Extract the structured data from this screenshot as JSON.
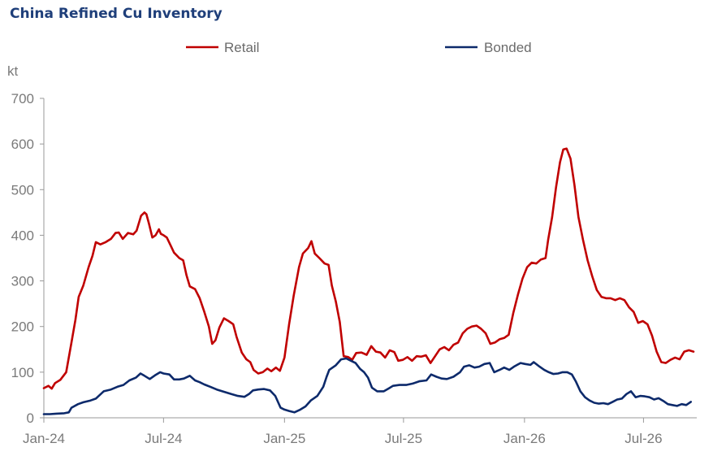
{
  "chart_data": {
    "type": "line",
    "title": "China Refined Cu Inventory",
    "ylabel": "kt",
    "xlabel": "",
    "ylim": [
      0,
      700
    ],
    "yticks": [
      0,
      100,
      200,
      300,
      400,
      500,
      600,
      700
    ],
    "xlim": [
      "2024-01-01",
      "2026-09-20"
    ],
    "xticks": [
      "2024-01-01",
      "2024-07-01",
      "2025-01-01",
      "2025-07-01",
      "2026-01-01",
      "2026-07-01"
    ],
    "xtick_labels": [
      "Jan-24",
      "Jul-24",
      "Jan-25",
      "Jul-25",
      "Jan-26",
      "Jul-26"
    ],
    "grid": false,
    "legend": "top-center",
    "series": [
      {
        "name": "Retail",
        "color": "#c00000",
        "points": [
          [
            "2024-01-01",
            65
          ],
          [
            "2024-01-08",
            70
          ],
          [
            "2024-01-13",
            64
          ],
          [
            "2024-01-18",
            76
          ],
          [
            "2024-01-26",
            83
          ],
          [
            "2024-02-04",
            100
          ],
          [
            "2024-02-12",
            165
          ],
          [
            "2024-02-18",
            215
          ],
          [
            "2024-02-23",
            265
          ],
          [
            "2024-03-01",
            290
          ],
          [
            "2024-03-09",
            330
          ],
          [
            "2024-03-15",
            355
          ],
          [
            "2024-03-20",
            385
          ],
          [
            "2024-03-27",
            380
          ],
          [
            "2024-04-04",
            385
          ],
          [
            "2024-04-12",
            392
          ],
          [
            "2024-04-19",
            405
          ],
          [
            "2024-04-24",
            406
          ],
          [
            "2024-04-30",
            392
          ],
          [
            "2024-05-08",
            405
          ],
          [
            "2024-05-16",
            402
          ],
          [
            "2024-05-21",
            410
          ],
          [
            "2024-05-28",
            443
          ],
          [
            "2024-06-02",
            450
          ],
          [
            "2024-06-05",
            446
          ],
          [
            "2024-06-09",
            425
          ],
          [
            "2024-06-14",
            395
          ],
          [
            "2024-06-19",
            400
          ],
          [
            "2024-06-24",
            413
          ],
          [
            "2024-06-27",
            403
          ],
          [
            "2024-07-01",
            400
          ],
          [
            "2024-07-06",
            395
          ],
          [
            "2024-07-11",
            380
          ],
          [
            "2024-07-17",
            362
          ],
          [
            "2024-07-25",
            350
          ],
          [
            "2024-07-31",
            345
          ],
          [
            "2024-08-05",
            312
          ],
          [
            "2024-08-10",
            288
          ],
          [
            "2024-08-18",
            282
          ],
          [
            "2024-08-25",
            262
          ],
          [
            "2024-09-01",
            232
          ],
          [
            "2024-09-08",
            200
          ],
          [
            "2024-09-13",
            162
          ],
          [
            "2024-09-18",
            170
          ],
          [
            "2024-09-24",
            198
          ],
          [
            "2024-10-01",
            218
          ],
          [
            "2024-10-08",
            212
          ],
          [
            "2024-10-15",
            205
          ],
          [
            "2024-10-20",
            178
          ],
          [
            "2024-10-28",
            143
          ],
          [
            "2024-11-04",
            128
          ],
          [
            "2024-11-10",
            122
          ],
          [
            "2024-11-15",
            105
          ],
          [
            "2024-11-22",
            97
          ],
          [
            "2024-11-29",
            100
          ],
          [
            "2024-12-06",
            108
          ],
          [
            "2024-12-12",
            102
          ],
          [
            "2024-12-19",
            110
          ],
          [
            "2024-12-25",
            103
          ],
          [
            "2025-01-01",
            132
          ],
          [
            "2025-01-08",
            205
          ],
          [
            "2025-01-15",
            268
          ],
          [
            "2025-01-23",
            330
          ],
          [
            "2025-01-29",
            360
          ],
          [
            "2025-02-06",
            372
          ],
          [
            "2025-02-11",
            387
          ],
          [
            "2025-02-16",
            360
          ],
          [
            "2025-02-23",
            350
          ],
          [
            "2025-03-03",
            338
          ],
          [
            "2025-03-09",
            335
          ],
          [
            "2025-03-14",
            290
          ],
          [
            "2025-03-20",
            255
          ],
          [
            "2025-03-26",
            210
          ],
          [
            "2025-04-01",
            135
          ],
          [
            "2025-04-08",
            133
          ],
          [
            "2025-04-14",
            127
          ],
          [
            "2025-04-20",
            142
          ],
          [
            "2025-04-28",
            143
          ],
          [
            "2025-05-06",
            138
          ],
          [
            "2025-05-13",
            157
          ],
          [
            "2025-05-20",
            145
          ],
          [
            "2025-05-27",
            143
          ],
          [
            "2025-06-03",
            132
          ],
          [
            "2025-06-10",
            148
          ],
          [
            "2025-06-17",
            144
          ],
          [
            "2025-06-23",
            125
          ],
          [
            "2025-06-30",
            127
          ],
          [
            "2025-07-07",
            133
          ],
          [
            "2025-07-14",
            125
          ],
          [
            "2025-07-21",
            135
          ],
          [
            "2025-07-28",
            134
          ],
          [
            "2025-08-04",
            137
          ],
          [
            "2025-08-11",
            120
          ],
          [
            "2025-08-18",
            135
          ],
          [
            "2025-08-25",
            150
          ],
          [
            "2025-09-01",
            155
          ],
          [
            "2025-09-08",
            148
          ],
          [
            "2025-09-15",
            160
          ],
          [
            "2025-09-22",
            165
          ],
          [
            "2025-09-29",
            185
          ],
          [
            "2025-10-06",
            195
          ],
          [
            "2025-10-13",
            200
          ],
          [
            "2025-10-20",
            202
          ],
          [
            "2025-10-27",
            195
          ],
          [
            "2025-11-03",
            185
          ],
          [
            "2025-11-10",
            162
          ],
          [
            "2025-11-17",
            165
          ],
          [
            "2025-11-24",
            172
          ],
          [
            "2025-12-01",
            175
          ],
          [
            "2025-12-08",
            182
          ],
          [
            "2025-12-15",
            230
          ],
          [
            "2025-12-22",
            270
          ],
          [
            "2025-12-29",
            305
          ],
          [
            "2026-01-05",
            330
          ],
          [
            "2026-01-12",
            340
          ],
          [
            "2026-01-19",
            338
          ],
          [
            "2026-01-26",
            347
          ],
          [
            "2026-02-02",
            350
          ],
          [
            "2026-02-06",
            390
          ],
          [
            "2026-02-12",
            440
          ],
          [
            "2026-02-18",
            505
          ],
          [
            "2026-02-24",
            560
          ],
          [
            "2026-03-01",
            588
          ],
          [
            "2026-03-06",
            590
          ],
          [
            "2026-03-12",
            568
          ],
          [
            "2026-03-18",
            510
          ],
          [
            "2026-03-24",
            440
          ],
          [
            "2026-03-31",
            390
          ],
          [
            "2026-04-07",
            345
          ],
          [
            "2026-04-14",
            310
          ],
          [
            "2026-04-21",
            280
          ],
          [
            "2026-04-28",
            265
          ],
          [
            "2026-05-05",
            262
          ],
          [
            "2026-05-12",
            262
          ],
          [
            "2026-05-19",
            258
          ],
          [
            "2026-05-26",
            262
          ],
          [
            "2026-06-02",
            258
          ],
          [
            "2026-06-09",
            242
          ],
          [
            "2026-06-16",
            232
          ],
          [
            "2026-06-23",
            208
          ],
          [
            "2026-06-30",
            212
          ],
          [
            "2026-07-07",
            205
          ],
          [
            "2026-07-14",
            180
          ],
          [
            "2026-07-21",
            145
          ],
          [
            "2026-07-28",
            122
          ],
          [
            "2026-08-04",
            120
          ],
          [
            "2026-08-11",
            127
          ],
          [
            "2026-08-18",
            132
          ],
          [
            "2026-08-25",
            128
          ],
          [
            "2026-09-01",
            145
          ],
          [
            "2026-09-08",
            148
          ],
          [
            "2026-09-15",
            145
          ]
        ]
      },
      {
        "name": "Bonded",
        "color": "#0d2a6b",
        "points": [
          [
            "2024-01-01",
            8
          ],
          [
            "2024-01-10",
            8
          ],
          [
            "2024-01-20",
            9
          ],
          [
            "2024-02-01",
            10
          ],
          [
            "2024-02-08",
            12
          ],
          [
            "2024-02-12",
            22
          ],
          [
            "2024-02-22",
            30
          ],
          [
            "2024-03-01",
            34
          ],
          [
            "2024-03-12",
            38
          ],
          [
            "2024-03-20",
            42
          ],
          [
            "2024-04-01",
            58
          ],
          [
            "2024-04-12",
            62
          ],
          [
            "2024-04-22",
            68
          ],
          [
            "2024-05-01",
            72
          ],
          [
            "2024-05-10",
            82
          ],
          [
            "2024-05-20",
            88
          ],
          [
            "2024-05-27",
            97
          ],
          [
            "2024-06-02",
            92
          ],
          [
            "2024-06-10",
            85
          ],
          [
            "2024-06-18",
            93
          ],
          [
            "2024-06-26",
            100
          ],
          [
            "2024-07-01",
            97
          ],
          [
            "2024-07-10",
            95
          ],
          [
            "2024-07-17",
            84
          ],
          [
            "2024-07-25",
            84
          ],
          [
            "2024-08-01",
            86
          ],
          [
            "2024-08-10",
            92
          ],
          [
            "2024-08-18",
            82
          ],
          [
            "2024-08-25",
            78
          ],
          [
            "2024-09-01",
            73
          ],
          [
            "2024-09-10",
            68
          ],
          [
            "2024-09-20",
            62
          ],
          [
            "2024-10-01",
            57
          ],
          [
            "2024-10-12",
            52
          ],
          [
            "2024-10-22",
            48
          ],
          [
            "2024-11-01",
            46
          ],
          [
            "2024-11-08",
            52
          ],
          [
            "2024-11-14",
            60
          ],
          [
            "2024-11-22",
            62
          ],
          [
            "2024-12-01",
            63
          ],
          [
            "2024-12-10",
            60
          ],
          [
            "2024-12-18",
            48
          ],
          [
            "2024-12-26",
            22
          ],
          [
            "2025-01-01",
            18
          ],
          [
            "2025-01-08",
            15
          ],
          [
            "2025-01-16",
            12
          ],
          [
            "2025-01-25",
            18
          ],
          [
            "2025-02-02",
            25
          ],
          [
            "2025-02-10",
            38
          ],
          [
            "2025-02-20",
            48
          ],
          [
            "2025-03-01",
            68
          ],
          [
            "2025-03-06",
            90
          ],
          [
            "2025-03-10",
            105
          ],
          [
            "2025-03-20",
            115
          ],
          [
            "2025-03-28",
            128
          ],
          [
            "2025-04-05",
            130
          ],
          [
            "2025-04-12",
            125
          ],
          [
            "2025-04-19",
            120
          ],
          [
            "2025-04-26",
            107
          ],
          [
            "2025-05-02",
            100
          ],
          [
            "2025-05-08",
            88
          ],
          [
            "2025-05-14",
            66
          ],
          [
            "2025-05-22",
            58
          ],
          [
            "2025-06-01",
            58
          ],
          [
            "2025-06-08",
            64
          ],
          [
            "2025-06-15",
            70
          ],
          [
            "2025-06-25",
            72
          ],
          [
            "2025-07-05",
            72
          ],
          [
            "2025-07-15",
            75
          ],
          [
            "2025-07-25",
            80
          ],
          [
            "2025-08-05",
            82
          ],
          [
            "2025-08-12",
            95
          ],
          [
            "2025-08-20",
            90
          ],
          [
            "2025-08-28",
            86
          ],
          [
            "2025-09-05",
            85
          ],
          [
            "2025-09-15",
            90
          ],
          [
            "2025-09-25",
            100
          ],
          [
            "2025-10-01",
            112
          ],
          [
            "2025-10-09",
            115
          ],
          [
            "2025-10-17",
            110
          ],
          [
            "2025-10-24",
            112
          ],
          [
            "2025-11-01",
            118
          ],
          [
            "2025-11-09",
            120
          ],
          [
            "2025-11-16",
            100
          ],
          [
            "2025-11-24",
            105
          ],
          [
            "2025-12-01",
            110
          ],
          [
            "2025-12-09",
            105
          ],
          [
            "2025-12-17",
            113
          ],
          [
            "2025-12-26",
            120
          ],
          [
            "2026-01-02",
            118
          ],
          [
            "2026-01-10",
            116
          ],
          [
            "2026-01-15",
            122
          ],
          [
            "2026-01-24",
            112
          ],
          [
            "2026-01-31",
            105
          ],
          [
            "2026-02-07",
            100
          ],
          [
            "2026-02-14",
            96
          ],
          [
            "2026-02-21",
            97
          ],
          [
            "2026-02-28",
            100
          ],
          [
            "2026-03-07",
            100
          ],
          [
            "2026-03-14",
            95
          ],
          [
            "2026-03-20",
            80
          ],
          [
            "2026-03-27",
            58
          ],
          [
            "2026-04-03",
            45
          ],
          [
            "2026-04-10",
            38
          ],
          [
            "2026-04-17",
            33
          ],
          [
            "2026-04-24",
            31
          ],
          [
            "2026-05-01",
            32
          ],
          [
            "2026-05-08",
            30
          ],
          [
            "2026-05-15",
            35
          ],
          [
            "2026-05-22",
            40
          ],
          [
            "2026-05-29",
            42
          ],
          [
            "2026-06-05",
            52
          ],
          [
            "2026-06-12",
            58
          ],
          [
            "2026-06-19",
            45
          ],
          [
            "2026-06-26",
            48
          ],
          [
            "2026-07-03",
            47
          ],
          [
            "2026-07-10",
            45
          ],
          [
            "2026-07-17",
            40
          ],
          [
            "2026-07-24",
            43
          ],
          [
            "2026-07-31",
            37
          ],
          [
            "2026-08-07",
            30
          ],
          [
            "2026-08-14",
            28
          ],
          [
            "2026-08-21",
            26
          ],
          [
            "2026-08-28",
            30
          ],
          [
            "2026-09-04",
            28
          ],
          [
            "2026-09-11",
            35
          ]
        ]
      }
    ]
  }
}
